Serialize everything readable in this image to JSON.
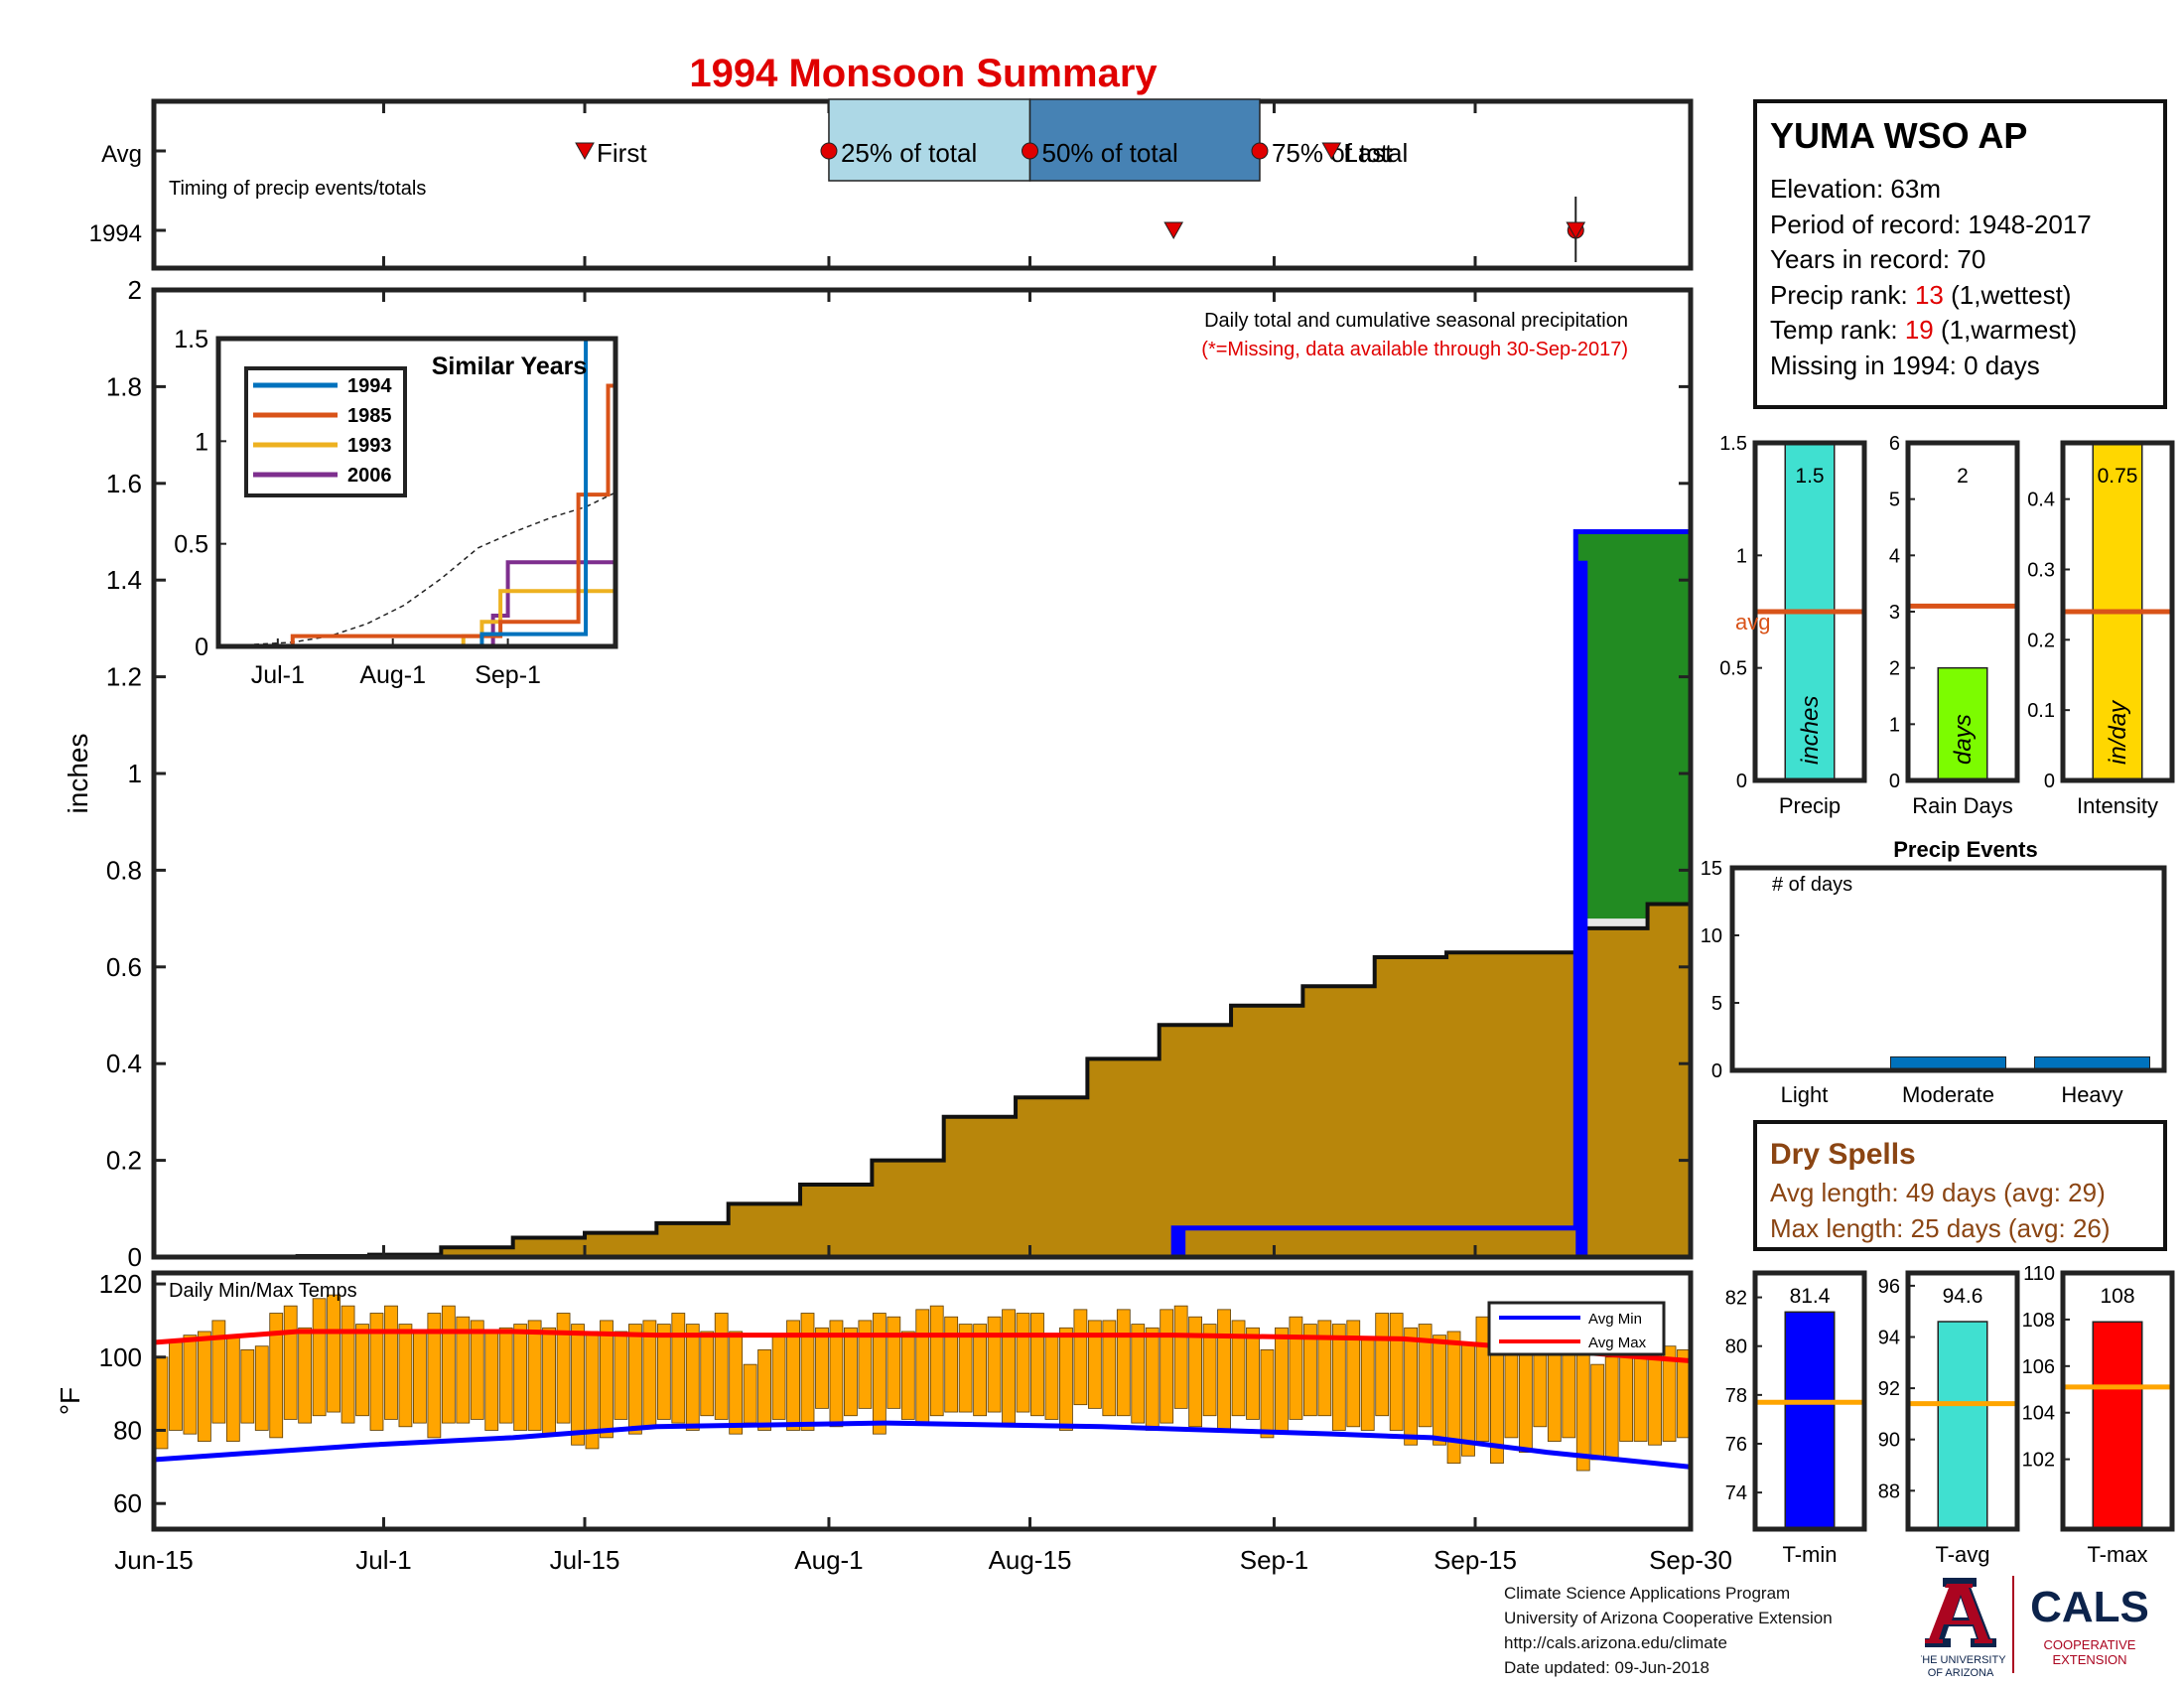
{
  "title": "1994 Monsoon Summary",
  "timing": {
    "caption": "Timing of precip events/totals",
    "row_labels": [
      "Avg",
      "1994"
    ],
    "labels": {
      "first": "First",
      "p25": "25% of total",
      "p50": "50% of total",
      "p75": "75% of total",
      "last": "Last"
    },
    "avg": {
      "first": "Jul-15",
      "p25": "Aug-1",
      "p50": "Aug-15",
      "p75": "Aug-31",
      "last": "Sep-5"
    },
    "y1994": {
      "first": "Aug-25",
      "all_percentiles": "Sep-22"
    },
    "colors": {
      "q1": "#ADD8E6",
      "q2": "#4682B4",
      "marker": "#E00000"
    }
  },
  "station": {
    "name": "YUMA WSO AP",
    "elevation_label": "Elevation: 63m",
    "period_label": "Period of record: 1948-2017",
    "years_label": "Years in record: 70",
    "precip_rank_prefix": "Precip rank: ",
    "precip_rank": "13",
    "precip_rank_suffix": " (1,wettest)",
    "temp_rank_prefix": "Temp rank: ",
    "temp_rank": "19",
    "temp_rank_suffix": " (1,warmest)",
    "missing_label": "Missing in 1994: 0 days"
  },
  "chart_data": [
    {
      "id": "cumulative_precip",
      "type": "area",
      "title": "Daily total and cumulative seasonal precipitation",
      "subtitle": "(*=Missing, data available through 30-Sep-2017)",
      "ylabel": "inches",
      "ylim": [
        0,
        2
      ],
      "yticks": [
        0,
        0.2,
        0.4,
        0.6,
        0.8,
        1,
        1.2,
        1.4,
        1.6,
        1.8,
        2
      ],
      "xticks": [
        "Jun-15",
        "Jul-1",
        "Jul-15",
        "Aug-1",
        "Aug-15",
        "Sep-1",
        "Sep-15",
        "Sep-30"
      ],
      "x_range": [
        "Jun-15",
        "Sep-30"
      ],
      "avg_cumulative": {
        "x": [
          "Jun-15",
          "Jun-20",
          "Jun-25",
          "Jun-30",
          "Jul-5",
          "Jul-10",
          "Jul-15",
          "Jul-20",
          "Jul-25",
          "Jul-30",
          "Aug-4",
          "Aug-9",
          "Aug-14",
          "Aug-19",
          "Aug-24",
          "Aug-29",
          "Sep-3",
          "Sep-8",
          "Sep-13",
          "Sep-18",
          "Sep-22",
          "Sep-27",
          "Sep-30"
        ],
        "y": [
          0,
          0,
          0.002,
          0.005,
          0.02,
          0.04,
          0.05,
          0.07,
          0.11,
          0.15,
          0.2,
          0.29,
          0.33,
          0.41,
          0.48,
          0.52,
          0.56,
          0.62,
          0.63,
          0.63,
          0.68,
          0.73,
          0.75
        ]
      },
      "daily_1994": [
        {
          "date": "Aug-25",
          "value": 0.06
        },
        {
          "date": "Sep-22",
          "value": 1.44
        }
      ],
      "cumulative_1994": {
        "x": [
          "Jun-15",
          "Aug-24",
          "Aug-25",
          "Sep-21",
          "Sep-22",
          "Sep-30"
        ],
        "y": [
          0,
          0,
          0.06,
          0.06,
          1.5,
          1.5
        ]
      },
      "colors": {
        "avg_fill": "#B8860B",
        "above": "#228B22",
        "below": "#E6E6E6",
        "bar": "#0000FF"
      }
    },
    {
      "id": "similar_years",
      "type": "line",
      "title": "Similar Years",
      "ylim": [
        0,
        1.5
      ],
      "yticks": [
        0,
        0.5,
        1,
        1.5
      ],
      "xticks": [
        "Jul-1",
        "Aug-1",
        "Sep-1"
      ],
      "series": [
        {
          "name": "1994",
          "color": "#0072BD",
          "x": [
            "Jun-15",
            "Aug-25",
            "Sep-22",
            "Sep-30"
          ],
          "y": [
            0,
            0.06,
            1.5,
            1.5
          ]
        },
        {
          "name": "1985",
          "color": "#D95319",
          "x": [
            "Jun-15",
            "Jul-5",
            "Aug-30",
            "Sep-20",
            "Sep-28",
            "Sep-30"
          ],
          "y": [
            0,
            0.05,
            0.12,
            0.74,
            1.27,
            1.31
          ]
        },
        {
          "name": "1993",
          "color": "#EDB120",
          "x": [
            "Jun-15",
            "Aug-20",
            "Aug-25",
            "Aug-30",
            "Sep-30"
          ],
          "y": [
            0,
            0.05,
            0.12,
            0.27,
            0.27
          ]
        },
        {
          "name": "2006",
          "color": "#7E2F8E",
          "x": [
            "Jun-15",
            "Aug-28",
            "Sep-1",
            "Sep-30"
          ],
          "y": [
            0,
            0.15,
            0.41,
            0.41
          ]
        }
      ],
      "avg_dashed": {
        "x": [
          "Jun-15",
          "Jul-5",
          "Jul-15",
          "Jul-25",
          "Aug-4",
          "Aug-14",
          "Aug-24",
          "Sep-3",
          "Sep-13",
          "Sep-22",
          "Sep-30"
        ],
        "y": [
          0,
          0.02,
          0.05,
          0.11,
          0.2,
          0.33,
          0.48,
          0.56,
          0.63,
          0.68,
          0.75
        ]
      }
    },
    {
      "id": "temps",
      "type": "bar",
      "title": "Daily Min/Max Temps",
      "ylabel": "°F",
      "ylim": [
        53,
        123
      ],
      "yticks": [
        60,
        80,
        100,
        120
      ],
      "legend": [
        "Avg Min",
        "Avg Max"
      ],
      "avg_min": {
        "x": [
          "Jun-15",
          "Jun-30",
          "Jul-10",
          "Jul-20",
          "Aug-5",
          "Aug-20",
          "Sep-5",
          "Sep-12",
          "Sep-20",
          "Sep-30"
        ],
        "y": [
          72,
          76,
          78,
          81,
          82,
          81,
          79,
          78,
          74,
          70
        ]
      },
      "avg_max": {
        "x": [
          "Jun-15",
          "Jun-25",
          "Jul-10",
          "Jul-20",
          "Aug-10",
          "Aug-25",
          "Sep-10",
          "Sep-20",
          "Sep-30"
        ],
        "y": [
          104,
          107,
          107,
          106,
          106,
          106,
          105,
          102,
          99
        ]
      },
      "daily_min": [
        75,
        80,
        79,
        77,
        82,
        77,
        82,
        80,
        78,
        83,
        82,
        84,
        85,
        82,
        84,
        80,
        83,
        81,
        82,
        78,
        82,
        82,
        83,
        80,
        82,
        80,
        80,
        79,
        82,
        76,
        75,
        78,
        83,
        79,
        81,
        83,
        82,
        80,
        84,
        83,
        79,
        82,
        80,
        83,
        80,
        80,
        86,
        81,
        84,
        86,
        79,
        86,
        83,
        82,
        84,
        85,
        85,
        84,
        85,
        82,
        85,
        84,
        83,
        80,
        87,
        86,
        84,
        84,
        82,
        80,
        82,
        86,
        81,
        84,
        80,
        84,
        83,
        78,
        79,
        83,
        84,
        84,
        80,
        81,
        80,
        84,
        80,
        76,
        81,
        76,
        71,
        73,
        77,
        71,
        78,
        74,
        81,
        77,
        78,
        69,
        72,
        72,
        77,
        77,
        76,
        77,
        78
      ],
      "daily_max": [
        100,
        104,
        106,
        107,
        110,
        106,
        102,
        103,
        112,
        114,
        108,
        116,
        117,
        114,
        109,
        112,
        114,
        109,
        107,
        112,
        114,
        111,
        110,
        107,
        108,
        109,
        110,
        108,
        112,
        109,
        107,
        110,
        107,
        109,
        110,
        109,
        112,
        109,
        107,
        112,
        107,
        98,
        102,
        106,
        110,
        112,
        108,
        110,
        108,
        110,
        112,
        111,
        107,
        113,
        114,
        111,
        109,
        109,
        111,
        113,
        112,
        112,
        106,
        108,
        113,
        110,
        110,
        113,
        109,
        108,
        113,
        114,
        111,
        109,
        113,
        110,
        108,
        102,
        108,
        111,
        109,
        110,
        109,
        110,
        105,
        112,
        112,
        108,
        109,
        106,
        107,
        104,
        111,
        113,
        104,
        112,
        111,
        110,
        113,
        105,
        98,
        100,
        103,
        104,
        103,
        103,
        102
      ]
    },
    {
      "id": "precip_bar",
      "type": "bar",
      "xlabel": "Precip",
      "ylim": [
        0,
        1.5
      ],
      "yticks": [
        0,
        0.5,
        1,
        1.5
      ],
      "value": 1.5,
      "value_label": "1.5",
      "unit_label": "inches",
      "avg": 0.75,
      "avg_label": "avg",
      "color": "#40E0D0"
    },
    {
      "id": "rain_days_bar",
      "type": "bar",
      "xlabel": "Rain Days",
      "ylim": [
        0,
        6
      ],
      "yticks": [
        0,
        1,
        2,
        3,
        4,
        5,
        6
      ],
      "value": 2,
      "value_label": "2",
      "unit_label": "days",
      "avg": 3.1,
      "color": "#7CFC00"
    },
    {
      "id": "intensity_bar",
      "type": "bar",
      "xlabel": "Intensity",
      "ylim": [
        0,
        0.48
      ],
      "yticks": [
        0,
        0.1,
        0.2,
        0.3,
        0.4
      ],
      "value": 0.75,
      "value_label": "0.75",
      "unit_label": "in/day",
      "avg": 0.24,
      "color": "#FFD700"
    },
    {
      "id": "precip_events",
      "type": "bar",
      "title": "Precip Events",
      "ylabel": "# of days",
      "ylim": [
        0,
        15
      ],
      "yticks": [
        0,
        5,
        10,
        15
      ],
      "categories": [
        "Light",
        "Moderate",
        "Heavy"
      ],
      "values": [
        0,
        1,
        1
      ],
      "color": "#0072BD"
    },
    {
      "id": "tmin_bar",
      "type": "bar",
      "xlabel": "T-min",
      "ylim": [
        72.5,
        83
      ],
      "yticks": [
        74,
        76,
        78,
        80,
        82
      ],
      "value": 81.4,
      "value_label": "81.4",
      "avg": 77.7,
      "color": "#0000FF"
    },
    {
      "id": "tavg_bar",
      "type": "bar",
      "xlabel": "T-avg",
      "ylim": [
        86.5,
        96.5
      ],
      "yticks": [
        88,
        90,
        92,
        94,
        96
      ],
      "value": 94.6,
      "value_label": "94.6",
      "avg": 91.4,
      "color": "#40E0D0"
    },
    {
      "id": "tmax_bar",
      "type": "bar",
      "xlabel": "T-max",
      "ylim": [
        99,
        110
      ],
      "yticks": [
        102,
        104,
        106,
        108,
        110
      ],
      "value": 107.9,
      "value_label": "108",
      "avg": 105.1,
      "color": "#FF0000"
    }
  ],
  "dry_spells": {
    "title": "Dry Spells",
    "avg_length": "Avg length: 49 days (avg: 29)",
    "max_length": "Max length: 25 days (avg: 26)",
    "color": "#8B4513"
  },
  "avg_line_color": "#FFA500",
  "avg_rank_color": "#D95319",
  "footer": {
    "line1": "Climate Science Applications Program",
    "line2": "University of Arizona Cooperative Extension",
    "line3": "http://cals.arizona.edu/climate",
    "line4": "Date updated: 09-Jun-2018"
  },
  "logos": {
    "ua_line1": "THE UNIVERSITY",
    "ua_line2": "OF ARIZONA",
    "cals": "CALS",
    "cals_line1": "COOPERATIVE",
    "cals_line2": "EXTENSION",
    "ua_red": "#AB0520",
    "ua_navy": "#0C234B"
  }
}
